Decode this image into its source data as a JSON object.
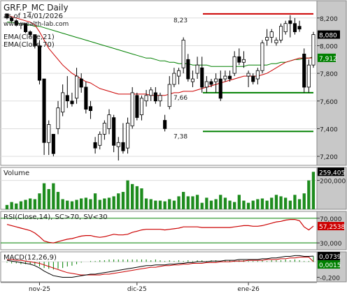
{
  "chart_data": {
    "type": "candlestick",
    "title": "GRF.P_MC Daily",
    "subtitle": "as of 14/01/2026",
    "watermark": "www.wealth-lab.com",
    "price": {
      "ylim": [
        7.14,
        8.32
      ],
      "yticks": [
        "8,200",
        "8,000",
        "7,800",
        "7,600",
        "7,400",
        "7,200"
      ],
      "ytick_values": [
        8.2,
        8.0,
        7.8,
        7.6,
        7.4,
        7.2
      ],
      "last_price_label": "8,080",
      "last_price": 8.08,
      "ema21_label": "EMA(Close,21)",
      "ema70_label": "EMA(Close,70)",
      "ema21_last_label": "7,912",
      "ema21_last": 7.912,
      "annotations": [
        {
          "text": "8,23",
          "value": 8.23,
          "color": "#cc0000"
        },
        {
          "text": "7,66",
          "value": 7.66,
          "color": "#008000"
        },
        {
          "text": "7,38",
          "value": 7.38,
          "color": "#008000"
        }
      ],
      "candles": [
        [
          8.23,
          8.23,
          8.19,
          8.2
        ],
        [
          8.2,
          8.21,
          8.17,
          8.18
        ],
        [
          8.18,
          8.19,
          8.14,
          8.15
        ],
        [
          8.15,
          8.17,
          8.12,
          8.16
        ],
        [
          8.16,
          8.16,
          8.09,
          8.1
        ],
        [
          8.1,
          8.11,
          8.06,
          8.08
        ],
        [
          8.08,
          8.08,
          7.98,
          8.0
        ],
        [
          8.0,
          8.04,
          7.72,
          7.75
        ],
        [
          7.76,
          7.76,
          7.21,
          7.3
        ],
        [
          7.3,
          7.46,
          7.21,
          7.43
        ],
        [
          7.36,
          7.36,
          7.2,
          7.22
        ],
        [
          7.4,
          7.6,
          7.36,
          7.55
        ],
        [
          7.52,
          7.72,
          7.49,
          7.66
        ],
        [
          7.64,
          7.78,
          7.55,
          7.6
        ],
        [
          7.6,
          7.66,
          7.56,
          7.58
        ],
        [
          7.62,
          7.84,
          7.58,
          7.78
        ],
        [
          7.76,
          7.8,
          7.66,
          7.7
        ],
        [
          7.7,
          7.74,
          7.51,
          7.54
        ],
        [
          7.56,
          7.6,
          7.47,
          7.53
        ],
        [
          7.3,
          7.34,
          7.22,
          7.26
        ],
        [
          7.28,
          7.38,
          7.25,
          7.36
        ],
        [
          7.36,
          7.46,
          7.32,
          7.44
        ],
        [
          7.4,
          7.54,
          7.36,
          7.5
        ],
        [
          7.48,
          7.5,
          7.23,
          7.28
        ],
        [
          7.27,
          7.34,
          7.17,
          7.3
        ],
        [
          7.3,
          7.44,
          7.22,
          7.24
        ],
        [
          7.26,
          7.48,
          7.22,
          7.44
        ],
        [
          7.42,
          7.7,
          7.4,
          7.66
        ],
        [
          7.64,
          7.66,
          7.46,
          7.48
        ],
        [
          7.5,
          7.64,
          7.46,
          7.62
        ],
        [
          7.6,
          7.68,
          7.56,
          7.64
        ],
        [
          7.64,
          7.7,
          7.6,
          7.68
        ],
        [
          7.66,
          7.7,
          7.58,
          7.6
        ],
        [
          7.6,
          7.66,
          7.56,
          7.64
        ],
        [
          7.46,
          7.5,
          7.38,
          7.4
        ],
        [
          7.56,
          7.78,
          7.54,
          7.72
        ],
        [
          7.72,
          7.84,
          7.7,
          7.8
        ],
        [
          7.78,
          7.84,
          7.72,
          7.82
        ],
        [
          7.84,
          8.06,
          7.8,
          8.04
        ],
        [
          7.9,
          7.94,
          7.74,
          7.76
        ],
        [
          7.74,
          7.82,
          7.7,
          7.76
        ],
        [
          7.8,
          7.92,
          7.76,
          7.86
        ],
        [
          7.84,
          7.92,
          7.66,
          7.7
        ],
        [
          7.7,
          7.78,
          7.66,
          7.74
        ],
        [
          7.74,
          7.76,
          7.7,
          7.72
        ],
        [
          7.74,
          7.8,
          7.66,
          7.76
        ],
        [
          7.76,
          7.82,
          7.6,
          7.62
        ],
        [
          7.76,
          7.82,
          7.74,
          7.78
        ],
        [
          7.78,
          7.82,
          7.74,
          7.76
        ],
        [
          7.8,
          7.96,
          7.78,
          7.92
        ],
        [
          7.92,
          7.98,
          7.86,
          7.88
        ],
        [
          7.88,
          7.96,
          7.84,
          7.9
        ],
        [
          7.78,
          7.82,
          7.7,
          7.8
        ],
        [
          7.78,
          7.8,
          7.72,
          7.74
        ],
        [
          7.76,
          7.84,
          7.72,
          7.82
        ],
        [
          7.82,
          8.04,
          7.8,
          8.02
        ],
        [
          8.04,
          8.12,
          8.0,
          8.06
        ],
        [
          8.06,
          8.12,
          8.02,
          8.1
        ],
        [
          8.02,
          8.06,
          8.0,
          8.04
        ],
        [
          8.04,
          8.16,
          8.02,
          8.14
        ],
        [
          8.1,
          8.18,
          8.08,
          8.16
        ],
        [
          8.18,
          8.22,
          8.06,
          8.16
        ],
        [
          8.16,
          8.2,
          8.08,
          8.1
        ],
        [
          8.14,
          8.18,
          8.1,
          8.12
        ],
        [
          7.94,
          7.98,
          7.66,
          7.7
        ],
        [
          7.7,
          7.9,
          7.66,
          7.86
        ],
        [
          7.86,
          8.1,
          7.84,
          8.08
        ]
      ],
      "ema21": [
        8.22,
        8.21,
        8.2,
        8.19,
        8.18,
        8.17,
        8.15,
        8.1,
        8.04,
        7.98,
        7.94,
        7.9,
        7.86,
        7.83,
        7.8,
        7.78,
        7.76,
        7.74,
        7.73,
        7.71,
        7.69,
        7.68,
        7.67,
        7.66,
        7.65,
        7.65,
        7.65,
        7.65,
        7.65,
        7.65,
        7.65,
        7.64,
        7.64,
        7.64,
        7.64,
        7.65,
        7.66,
        7.66,
        7.67,
        7.67,
        7.67,
        7.68,
        7.69,
        7.7,
        7.71,
        7.72,
        7.73,
        7.74,
        7.75,
        7.76,
        7.77,
        7.78,
        7.78,
        7.78,
        7.78,
        7.79,
        7.8,
        7.82,
        7.84,
        7.86,
        7.88,
        7.89,
        7.9,
        7.91,
        7.91,
        7.91,
        7.912
      ],
      "ema70": [
        8.17,
        8.17,
        8.16,
        8.16,
        8.15,
        8.15,
        8.14,
        8.14,
        8.13,
        8.12,
        8.11,
        8.1,
        8.09,
        8.08,
        8.07,
        8.06,
        8.05,
        8.04,
        8.03,
        8.02,
        8.01,
        8.0,
        7.99,
        7.98,
        7.97,
        7.96,
        7.95,
        7.94,
        7.93,
        7.92,
        7.91,
        7.91,
        7.9,
        7.89,
        7.89,
        7.88,
        7.88,
        7.87,
        7.87,
        7.87,
        7.86,
        7.86,
        7.86,
        7.86,
        7.85,
        7.85,
        7.85,
        7.85,
        7.85,
        7.85,
        7.85,
        7.85,
        7.86,
        7.86,
        7.86,
        7.86,
        7.86,
        7.87,
        7.87,
        7.88,
        7.88,
        7.89,
        7.9,
        7.9,
        7.91,
        7.91,
        7.92
      ]
    },
    "volume": {
      "label": "Volume",
      "yticks": [
        "200,000"
      ],
      "ytick_values": [
        200000
      ],
      "ylim": [
        0,
        280000
      ],
      "last_label": "259,405",
      "last_value": 259405,
      "values": [
        30000,
        50000,
        40000,
        55000,
        65000,
        75000,
        70000,
        110000,
        180000,
        140000,
        180000,
        120000,
        70000,
        60000,
        55000,
        65000,
        75000,
        80000,
        70000,
        110000,
        65000,
        75000,
        80000,
        90000,
        110000,
        120000,
        200000,
        175000,
        160000,
        145000,
        75000,
        70000,
        60000,
        60000,
        55000,
        70000,
        60000,
        90000,
        120000,
        90000,
        90000,
        100000,
        45000,
        80000,
        60000,
        70000,
        100000,
        80000,
        60000,
        50000,
        100000,
        60000,
        45000,
        60000,
        70000,
        75000,
        60000,
        80000,
        100000,
        90000,
        80000,
        60000,
        100000,
        70000,
        110000,
        200000,
        259405
      ]
    },
    "rsi": {
      "label": "RSI(Close,14), SC>70, SV<30",
      "yticks": [
        "70,000",
        "30,000"
      ],
      "ytick_values": [
        70,
        30
      ],
      "ylim": [
        20,
        80
      ],
      "overbought": 70,
      "oversold": 30,
      "last_label": "57,2538",
      "last_value": 57.2538,
      "values": [
        60,
        58,
        56,
        54,
        52,
        50,
        46,
        40,
        33,
        31,
        30,
        32,
        34,
        36,
        37,
        39,
        41,
        42,
        42,
        40,
        39,
        40,
        42,
        44,
        43,
        43,
        44,
        47,
        49,
        51,
        52,
        52,
        52,
        52,
        51,
        52,
        53,
        54,
        56,
        56,
        56,
        56,
        55,
        55,
        55,
        55,
        55,
        55,
        55,
        56,
        57,
        58,
        58,
        57,
        57,
        58,
        60,
        62,
        64,
        65,
        67,
        68,
        68,
        66,
        56,
        51,
        57.25
      ]
    },
    "macd": {
      "label": "MACD(12,26,9)",
      "yticks": [
        "-0,200"
      ],
      "ytick_values": [
        -0.2
      ],
      "ylim": [
        -0.25,
        0.12
      ],
      "last_label": "0,0739",
      "last_value": 0.0739,
      "signal_label": "0,0015",
      "signal_last": 0.0015,
      "macd": [
        0.02,
        0.01,
        0.0,
        -0.01,
        -0.02,
        -0.03,
        -0.05,
        -0.08,
        -0.12,
        -0.15,
        -0.18,
        -0.19,
        -0.2,
        -0.2,
        -0.2,
        -0.19,
        -0.18,
        -0.17,
        -0.16,
        -0.16,
        -0.15,
        -0.14,
        -0.13,
        -0.12,
        -0.11,
        -0.1,
        -0.09,
        -0.08,
        -0.07,
        -0.06,
        -0.05,
        -0.05,
        -0.04,
        -0.04,
        -0.04,
        -0.03,
        -0.03,
        -0.02,
        -0.02,
        -0.01,
        -0.01,
        0.0,
        0.0,
        0.0,
        0.01,
        0.01,
        0.01,
        0.02,
        0.02,
        0.02,
        0.03,
        0.03,
        0.03,
        0.03,
        0.03,
        0.04,
        0.04,
        0.05,
        0.05,
        0.06,
        0.07,
        0.07,
        0.08,
        0.08,
        0.07,
        0.07,
        0.0739
      ],
      "signal": [
        0.03,
        0.03,
        0.02,
        0.02,
        0.01,
        0.0,
        -0.01,
        -0.02,
        -0.04,
        -0.06,
        -0.08,
        -0.1,
        -0.12,
        -0.14,
        -0.15,
        -0.16,
        -0.17,
        -0.17,
        -0.17,
        -0.17,
        -0.17,
        -0.16,
        -0.16,
        -0.15,
        -0.14,
        -0.13,
        -0.12,
        -0.11,
        -0.1,
        -0.09,
        -0.08,
        -0.07,
        -0.07,
        -0.06,
        -0.05,
        -0.05,
        -0.04,
        -0.04,
        -0.03,
        -0.03,
        -0.02,
        -0.02,
        -0.02,
        -0.01,
        -0.01,
        -0.01,
        0.0,
        0.0,
        0.0,
        0.01,
        0.01,
        0.01,
        0.02,
        0.02,
        0.02,
        0.02,
        0.03,
        0.03,
        0.03,
        0.04,
        0.04,
        0.05,
        0.05,
        0.06,
        0.06,
        0.06,
        0.0015
      ]
    },
    "x_labels": [
      {
        "text": "nov-25",
        "index": 7
      },
      {
        "text": "dic-25",
        "index": 28
      },
      {
        "text": "ene-26",
        "index": 52
      }
    ],
    "colors": {
      "up": "#ffffff",
      "down": "#000000",
      "ema21": "#cc0000",
      "ema70": "#008000",
      "volume": "#1e8c1e",
      "rsi": "#cc0000",
      "macd": "#000000",
      "signal": "#cc0000",
      "histogram": "#008000",
      "axis_bg": "#c8c8c8",
      "resistance": "#cc0000",
      "support": "#008000"
    }
  }
}
